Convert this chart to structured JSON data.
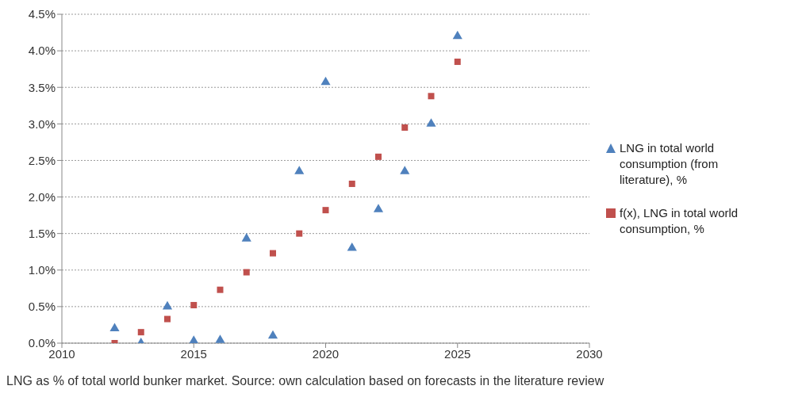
{
  "chart_data": {
    "type": "scatter",
    "annotations": [
      "LNG as % of total world bunker market. Source: own calculation based on forecasts in the literature review"
    ],
    "x": [
      2012,
      2013,
      2014,
      2015,
      2016,
      2017,
      2018,
      2019,
      2020,
      2021,
      2022,
      2023,
      2024,
      2025
    ],
    "series": [
      {
        "name": "LNG in total world consumption (from literature), %",
        "color": "#4f81bd",
        "marker": "triangle",
        "values": [
          0.2,
          0.0,
          0.5,
          0.03,
          0.04,
          1.43,
          0.1,
          2.35,
          3.57,
          1.3,
          1.83,
          2.35,
          3.0,
          4.2
        ]
      },
      {
        "name": "f(x), LNG in total world consumption, %",
        "color": "#c0504d",
        "marker": "square",
        "values": [
          0.0,
          0.15,
          0.33,
          0.52,
          0.73,
          0.97,
          1.23,
          1.5,
          1.82,
          2.18,
          2.55,
          2.95,
          3.38,
          3.85
        ]
      }
    ],
    "xlim": [
      2010,
      2030
    ],
    "xticks": [
      2010,
      2015,
      2020,
      2025,
      2030
    ],
    "ylim": [
      0,
      4.5
    ],
    "yticks": [
      {
        "value": 0,
        "label": "0.0%"
      },
      {
        "value": 0.5,
        "label": "0.5%"
      },
      {
        "value": 1,
        "label": "1.0%"
      },
      {
        "value": 1.5,
        "label": "1.5%"
      },
      {
        "value": 2,
        "label": "2.0%"
      },
      {
        "value": 2.5,
        "label": "2.5%"
      },
      {
        "value": 3,
        "label": "3.0%"
      },
      {
        "value": 3.5,
        "label": "3.5%"
      },
      {
        "value": 4,
        "label": "4.0%"
      },
      {
        "value": 4.5,
        "label": "4.5%"
      }
    ],
    "grid": "y",
    "legend": "right"
  }
}
